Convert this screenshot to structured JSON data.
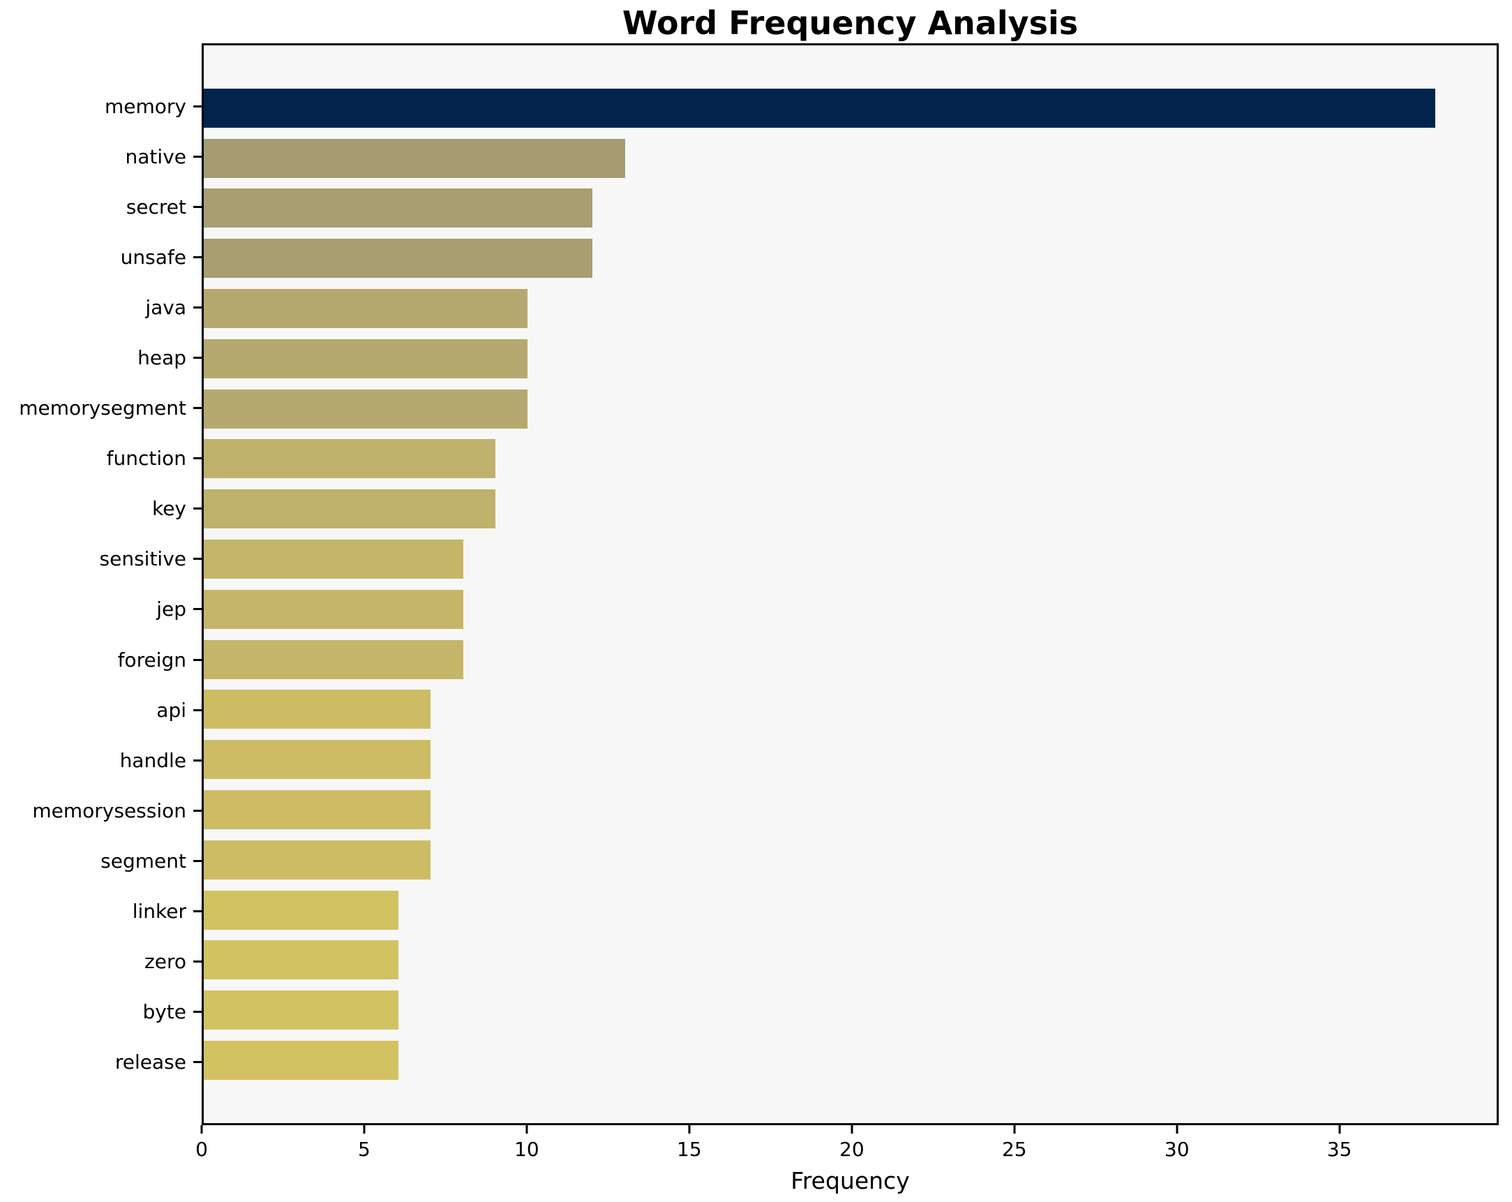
{
  "title": "Word Frequency Analysis",
  "xlabel": "Frequency",
  "chart_data": {
    "type": "bar",
    "orientation": "horizontal",
    "title": "Word Frequency Analysis",
    "xlabel": "Frequency",
    "ylabel": "",
    "categories": [
      "memory",
      "native",
      "secret",
      "unsafe",
      "java",
      "heap",
      "memorysegment",
      "function",
      "key",
      "sensitive",
      "jep",
      "foreign",
      "api",
      "handle",
      "memorysession",
      "segment",
      "linker",
      "zero",
      "byte",
      "release"
    ],
    "values": [
      38,
      13,
      12,
      12,
      10,
      10,
      10,
      9,
      9,
      8,
      8,
      8,
      7,
      7,
      7,
      7,
      6,
      6,
      6,
      6
    ],
    "bar_colors": [
      "#02234c",
      "#a59c73",
      "#a89e72",
      "#a89e72",
      "#b6a96f",
      "#b6a96f",
      "#b6a96f",
      "#bfb16c",
      "#bfb16c",
      "#c5b569",
      "#c5b569",
      "#c5b569",
      "#cdbc64",
      "#cdbc64",
      "#cdbc64",
      "#cdbc64",
      "#d3c261",
      "#d3c261",
      "#d3c261",
      "#d3c261"
    ],
    "xlim": [
      0,
      39.9
    ],
    "xticks": [
      0,
      5,
      10,
      15,
      20,
      25,
      30,
      35
    ],
    "grid": false,
    "legend": null,
    "plot_bg": "#f7f7f7",
    "fig_bg": "#ffffff",
    "spine_color": "#000000"
  }
}
